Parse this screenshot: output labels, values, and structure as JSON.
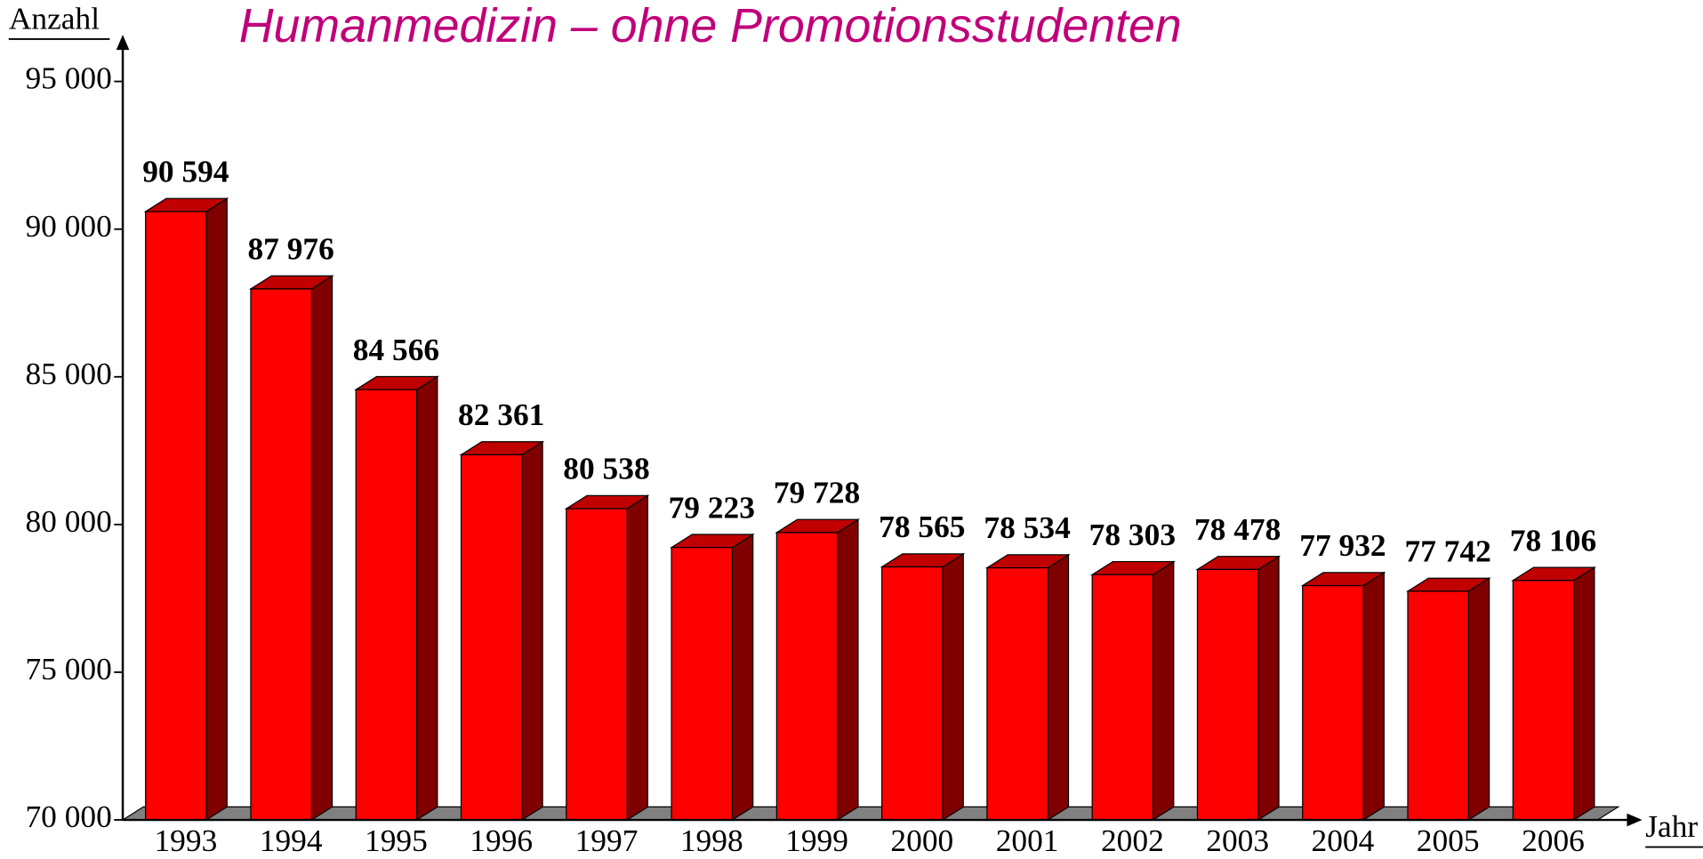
{
  "chart_data": {
    "type": "bar",
    "title": "Humanmedizin – ohne Promotionsstudenten",
    "y_label": "Anzahl",
    "x_label": "Jahr",
    "categories": [
      "1993",
      "1994",
      "1995",
      "1996",
      "1997",
      "1998",
      "1999",
      "2000",
      "2001",
      "2002",
      "2003",
      "2004",
      "2005",
      "2006"
    ],
    "values": [
      90594,
      87976,
      84566,
      82361,
      80538,
      79223,
      79728,
      78565,
      78534,
      78303,
      78478,
      77932,
      77742,
      78106
    ],
    "value_labels": [
      "90 594",
      "87 976",
      "84 566",
      "82 361",
      "80 538",
      "79 223",
      "79 728",
      "78 565",
      "78 534",
      "78 303",
      "78 478",
      "77 932",
      "77 742",
      "78 106"
    ],
    "color": "#ff0000",
    "ylim": [
      70000,
      95000
    ],
    "yticks": [
      {
        "value": 70000,
        "label": "70 000"
      },
      {
        "value": 75000,
        "label": "75 000"
      },
      {
        "value": 80000,
        "label": "80 000"
      },
      {
        "value": 85000,
        "label": "85 000"
      },
      {
        "value": 90000,
        "label": "90 000"
      },
      {
        "value": 95000,
        "label": "95 000"
      }
    ]
  }
}
